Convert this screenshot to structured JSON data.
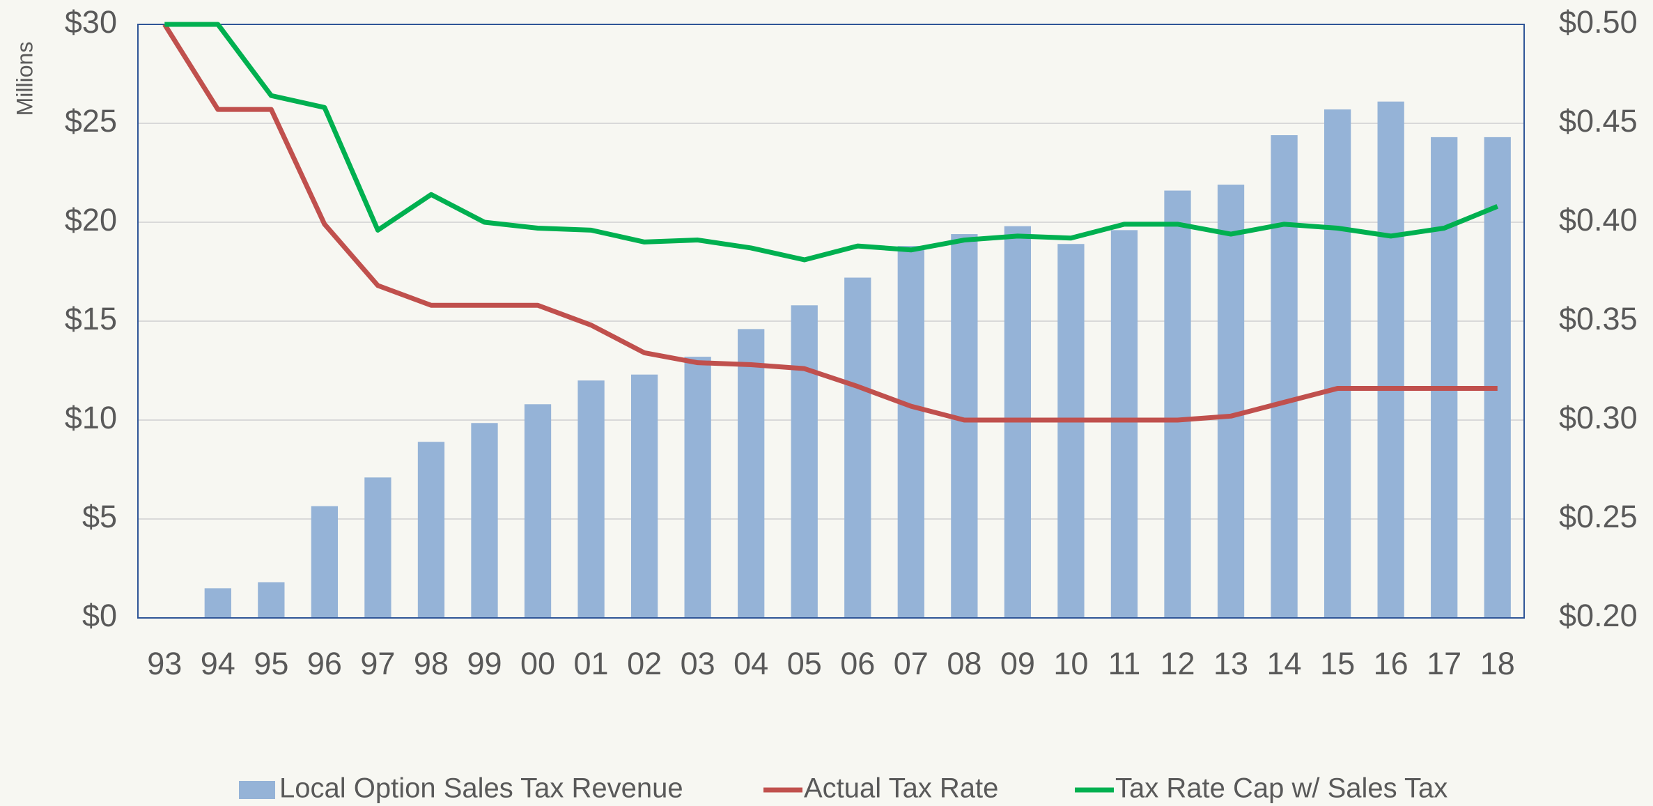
{
  "chart_data": {
    "type": "bar_line_dual_axis",
    "y_axis_label": "Millions",
    "categories": [
      "93",
      "94",
      "95",
      "96",
      "97",
      "98",
      "99",
      "00",
      "01",
      "02",
      "03",
      "04",
      "05",
      "06",
      "07",
      "08",
      "09",
      "10",
      "11",
      "12",
      "13",
      "14",
      "15",
      "16",
      "17",
      "18"
    ],
    "series": [
      {
        "name": "Local Option Sales Tax Revenue",
        "type": "bar",
        "axis": "y",
        "color": "#95b3d7",
        "values": [
          0,
          1.5,
          1.8,
          5.65,
          7.1,
          8.9,
          9.85,
          10.8,
          12.0,
          12.3,
          13.2,
          14.6,
          15.8,
          17.2,
          18.8,
          19.4,
          19.8,
          18.9,
          19.6,
          21.6,
          21.9,
          24.4,
          25.7,
          26.1,
          24.3,
          24.3
        ]
      },
      {
        "name": "Actual Tax Rate",
        "type": "line",
        "axis": "y2",
        "color": "#c0504d",
        "values": [
          0.5,
          0.457,
          0.457,
          0.399,
          0.368,
          0.358,
          0.358,
          0.358,
          0.348,
          0.334,
          0.329,
          0.328,
          0.326,
          0.317,
          0.307,
          0.3,
          0.3,
          0.3,
          0.3,
          0.3,
          0.302,
          0.309,
          0.316,
          0.316,
          0.316,
          0.316
        ]
      },
      {
        "name": "Tax Rate Cap w/ Sales Tax",
        "type": "line",
        "axis": "y2",
        "color": "#00b050",
        "values": [
          0.5,
          0.5,
          0.464,
          0.458,
          0.396,
          0.414,
          0.4,
          0.397,
          0.396,
          0.39,
          0.391,
          0.387,
          0.381,
          0.388,
          0.386,
          0.391,
          0.393,
          0.392,
          0.399,
          0.399,
          0.394,
          0.399,
          0.397,
          0.393,
          0.397,
          0.408
        ]
      }
    ],
    "ylim": [
      0,
      30
    ],
    "yticks": [
      {
        "value": 0,
        "label": "$0"
      },
      {
        "value": 5,
        "label": "$5"
      },
      {
        "value": 10,
        "label": "$10"
      },
      {
        "value": 15,
        "label": "$15"
      },
      {
        "value": 20,
        "label": "$20"
      },
      {
        "value": 25,
        "label": "$25"
      },
      {
        "value": 30,
        "label": "$30"
      }
    ],
    "y2lim": [
      0.2,
      0.5
    ],
    "y2ticks": [
      {
        "value": 0.2,
        "label": "$0.20"
      },
      {
        "value": 0.25,
        "label": "$0.25"
      },
      {
        "value": 0.3,
        "label": "$0.30"
      },
      {
        "value": 0.35,
        "label": "$0.35"
      },
      {
        "value": 0.4,
        "label": "$0.40"
      },
      {
        "value": 0.45,
        "label": "$0.45"
      },
      {
        "value": 0.5,
        "label": "$0.50"
      }
    ],
    "grid": true,
    "legend": "bottom"
  }
}
